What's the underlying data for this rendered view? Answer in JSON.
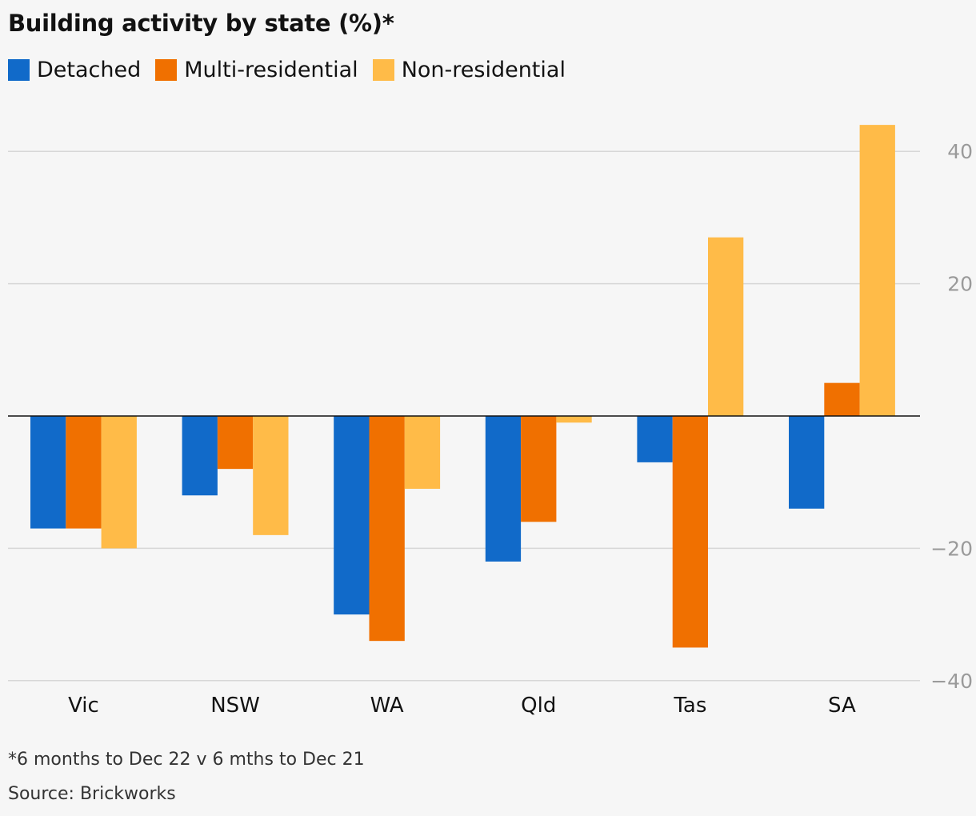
{
  "title": "Building activity by state (%)*",
  "footnote": "*6 months to Dec 22 v 6 mths to Dec 21",
  "source": "Source: Brickworks",
  "colors": {
    "detached": "#116ac9",
    "multi": "#f07000",
    "nonres": "#ffbb48",
    "grid": "#d7d7d7",
    "zero": "#121212",
    "tick": "#9a9a9a"
  },
  "legend": [
    {
      "label": "Detached",
      "color": "#116ac9"
    },
    {
      "label": "Multi-residential",
      "color": "#f07000"
    },
    {
      "label": "Non-residential",
      "color": "#ffbb48"
    }
  ],
  "chart_data": {
    "type": "bar",
    "categories": [
      "Vic",
      "NSW",
      "WA",
      "Qld",
      "Tas",
      "SA"
    ],
    "series": [
      {
        "name": "Detached",
        "values": [
          -17,
          -12,
          -30,
          -22,
          -7,
          -14
        ]
      },
      {
        "name": "Multi-residential",
        "values": [
          -17,
          -8,
          -34,
          -16,
          -35,
          5
        ]
      },
      {
        "name": "Non-residential",
        "values": [
          -20,
          -18,
          -11,
          -1,
          27,
          44
        ]
      }
    ],
    "ylim": [
      -40,
      40
    ],
    "yticks": [
      40,
      20,
      -20,
      -40
    ],
    "ytick_labels": [
      "40",
      "20",
      "−20",
      "−40"
    ],
    "grid": true,
    "axis_position": "right",
    "title": "Building activity by state (%)*",
    "xlabel": "",
    "ylabel": ""
  }
}
